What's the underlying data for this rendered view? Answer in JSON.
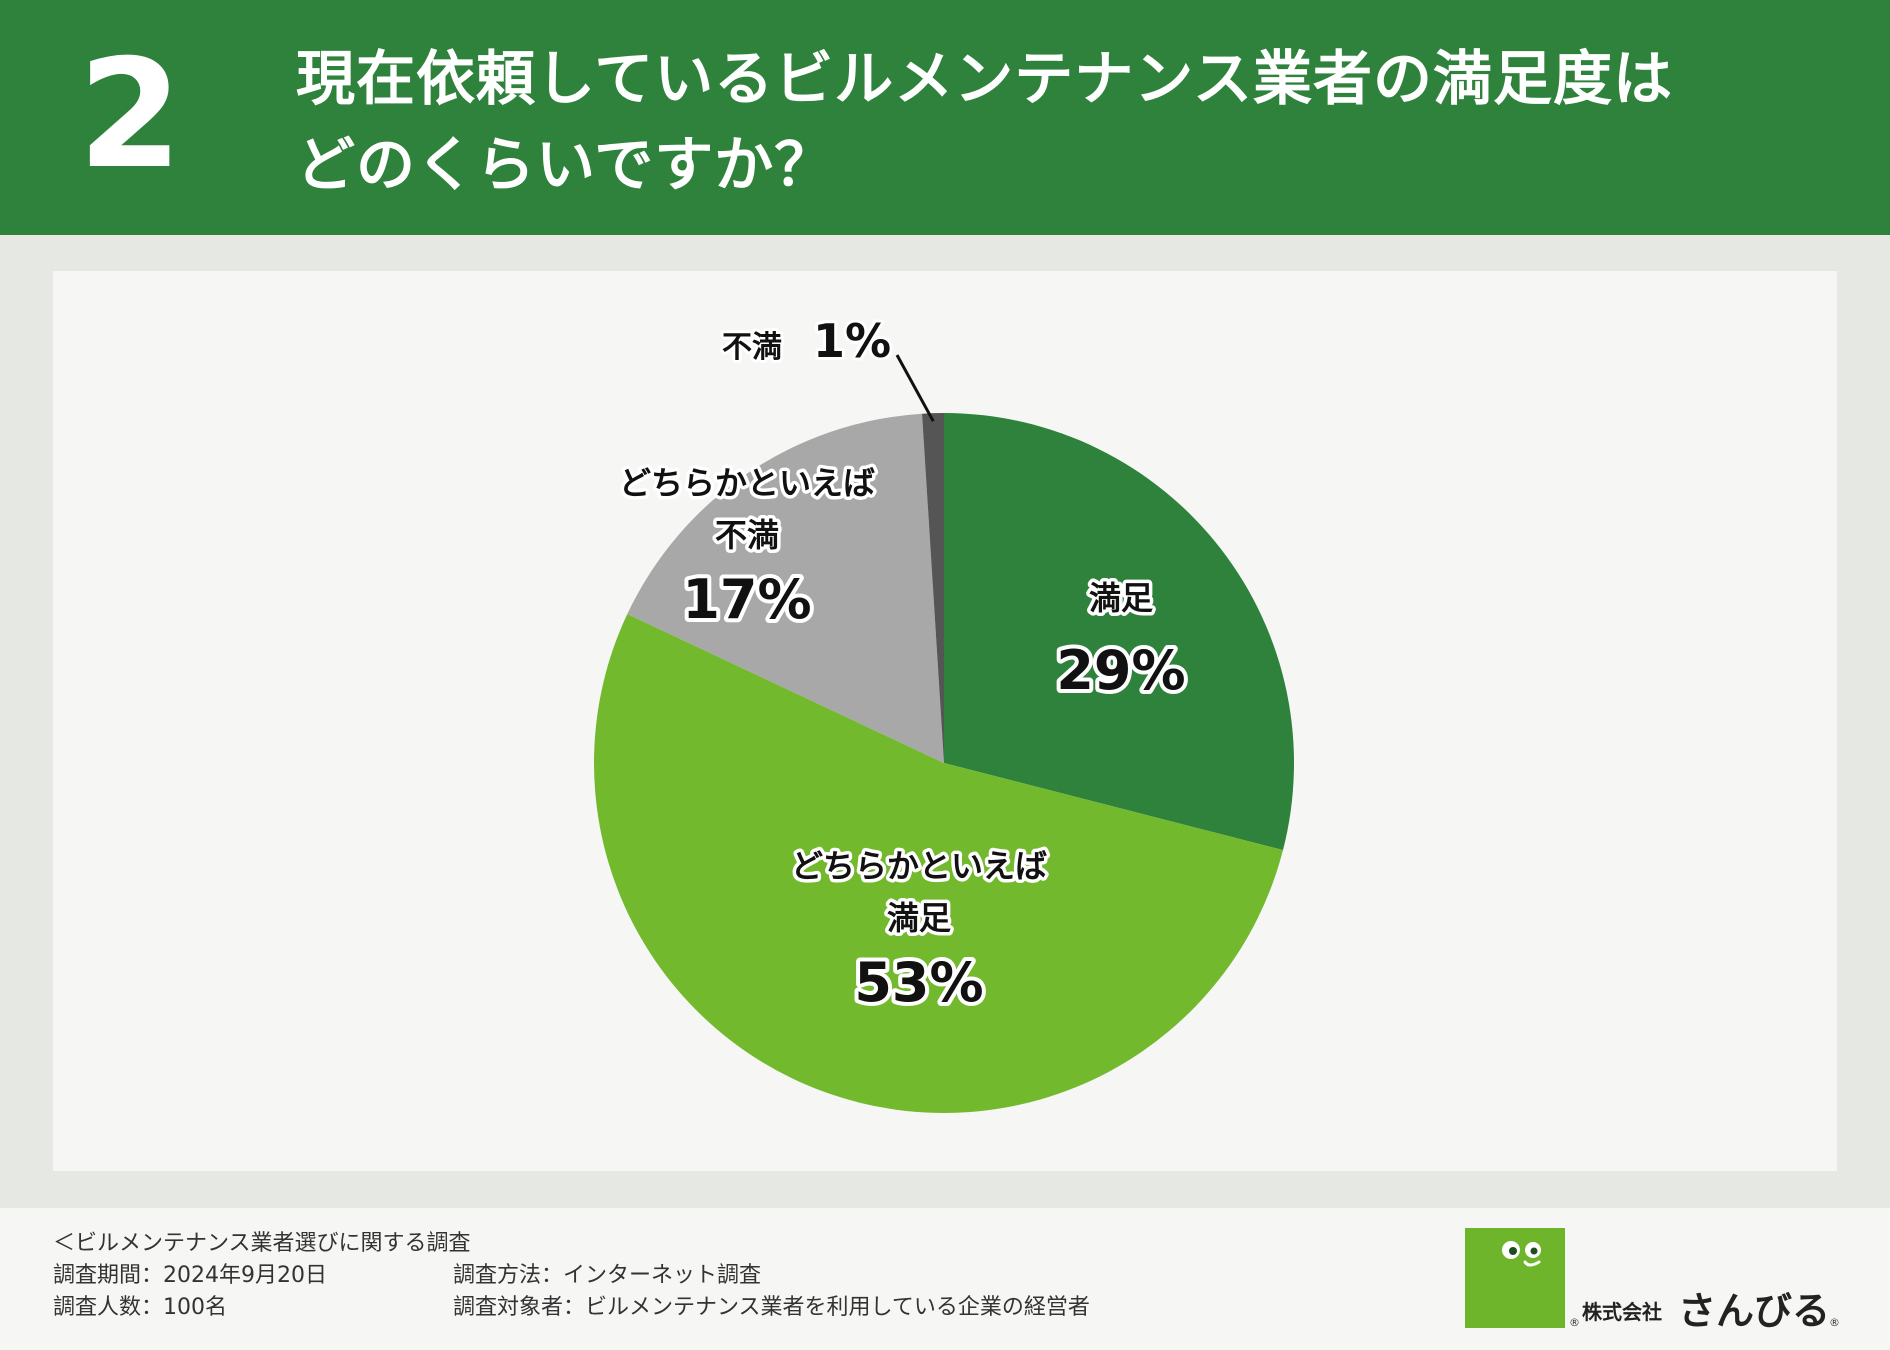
{
  "header": {
    "number": "2",
    "title_line1": "現在依頼しているビルメンテナンス業者の満足度は",
    "title_line2": "どのくらいですか？"
  },
  "chart_data": {
    "type": "pie",
    "title": "現在依頼しているビルメンテナンス業者の満足度はどのくらいですか？",
    "slices": [
      {
        "label_lines": [
          "満足"
        ],
        "value": 29,
        "value_label": "29%",
        "color": "#2e823b"
      },
      {
        "label_lines": [
          "どちらかといえば",
          "満足"
        ],
        "value": 53,
        "value_label": "53%",
        "color": "#72b92e"
      },
      {
        "label_lines": [
          "どちらかといえば",
          "不満"
        ],
        "value": 17,
        "value_label": "17%",
        "color": "#a8a8a8"
      },
      {
        "label_lines": [
          "不満"
        ],
        "value": 1,
        "value_label": "1%",
        "color": "#555555"
      }
    ],
    "start": "12 o'clock",
    "direction": "clockwise"
  },
  "footer": {
    "survey_name": "＜ビルメンテナンス業者選びに関する調査",
    "period": "調査期間：2024年9月20日",
    "method": "調査方法：インターネット調査",
    "respondents": "調査人数：100名",
    "target": "調査対象者：ビルメンテナンス業者を利用している企業の経営者"
  },
  "logo": {
    "corp": "株式会社",
    "name": "さんびる",
    "reg_mark": "®"
  },
  "colors": {
    "header_bg": "#2e823b",
    "page_bg": "#e6e9e3",
    "panel_bg": "#f6f7f4",
    "logo_green": "#6fb52c"
  }
}
